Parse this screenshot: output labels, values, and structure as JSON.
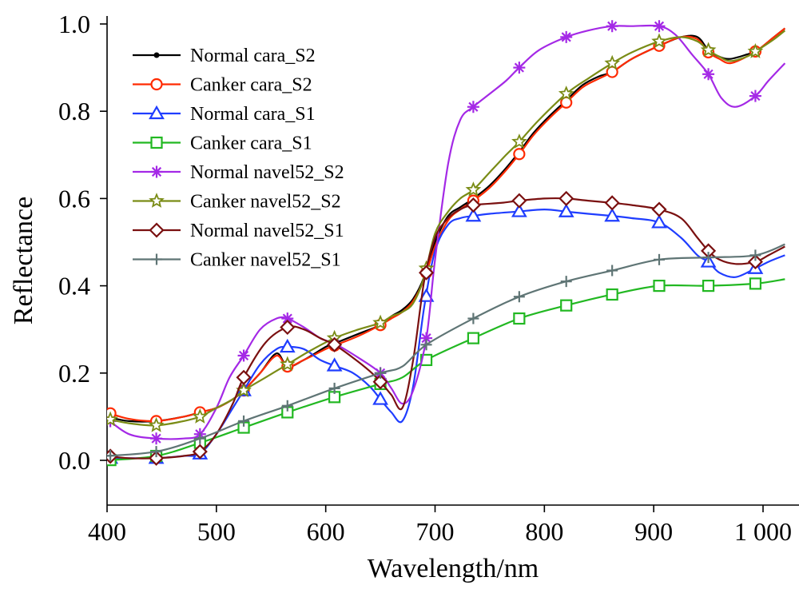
{
  "chart_data": {
    "type": "line",
    "xlabel": "Wavelength/nm",
    "ylabel": "Reflectance",
    "xlim": [
      400,
      1020
    ],
    "ylim": [
      -0.1,
      1.0
    ],
    "x_ticks": [
      400,
      500,
      600,
      700,
      800,
      900,
      1000
    ],
    "x_tick_labels": [
      "400",
      "500",
      "600",
      "700",
      "800",
      "900",
      "1 000"
    ],
    "y_ticks": [
      0.0,
      0.2,
      0.4,
      0.6,
      0.8,
      1.0
    ],
    "y_tick_labels": [
      "0.0",
      "0.2",
      "0.4",
      "0.6",
      "0.8",
      "1.0"
    ],
    "grid": false,
    "legend_position": "top-left",
    "series": [
      {
        "name": "Normal cara_S2",
        "color": "#000000",
        "marker": "dot",
        "x": [
          400,
          420,
          445,
          470,
          485,
          500,
          515,
          525,
          540,
          555,
          565,
          580,
          600,
          610,
          630,
          650,
          660,
          670,
          680,
          690,
          700,
          712,
          723,
          735,
          750,
          765,
          778,
          790,
          805,
          820,
          835,
          850,
          862,
          880,
          905,
          925,
          940,
          950,
          960,
          970,
          985,
          995,
          1010,
          1020
        ],
        "y": [
          0.1,
          0.09,
          0.09,
          0.1,
          0.11,
          0.12,
          0.14,
          0.16,
          0.2,
          0.245,
          0.215,
          0.23,
          0.26,
          0.27,
          0.29,
          0.31,
          0.33,
          0.345,
          0.37,
          0.42,
          0.5,
          0.56,
          0.58,
          0.6,
          0.63,
          0.67,
          0.71,
          0.75,
          0.79,
          0.825,
          0.86,
          0.88,
          0.89,
          0.92,
          0.95,
          0.97,
          0.97,
          0.94,
          0.925,
          0.92,
          0.93,
          0.94,
          0.97,
          0.99
        ]
      },
      {
        "name": "Canker cara_S2",
        "color": "#ff2a00",
        "marker": "circle",
        "x": [
          400,
          420,
          445,
          470,
          485,
          500,
          515,
          525,
          540,
          555,
          565,
          580,
          600,
          610,
          630,
          650,
          660,
          670,
          680,
          690,
          700,
          712,
          723,
          735,
          750,
          765,
          778,
          790,
          805,
          820,
          835,
          850,
          862,
          880,
          905,
          925,
          940,
          950,
          960,
          970,
          985,
          995,
          1010,
          1020
        ],
        "y": [
          0.11,
          0.095,
          0.09,
          0.1,
          0.11,
          0.12,
          0.14,
          0.16,
          0.2,
          0.24,
          0.215,
          0.23,
          0.255,
          0.265,
          0.285,
          0.31,
          0.325,
          0.34,
          0.365,
          0.415,
          0.49,
          0.55,
          0.575,
          0.595,
          0.625,
          0.665,
          0.705,
          0.745,
          0.785,
          0.82,
          0.855,
          0.875,
          0.89,
          0.92,
          0.95,
          0.97,
          0.965,
          0.935,
          0.92,
          0.91,
          0.925,
          0.94,
          0.97,
          0.99
        ]
      },
      {
        "name": "Normal cara_S1",
        "color": "#1f3dff",
        "marker": "triangle",
        "x": [
          400,
          420,
          445,
          470,
          485,
          500,
          515,
          525,
          540,
          555,
          565,
          580,
          595,
          610,
          625,
          640,
          650,
          660,
          670,
          680,
          690,
          700,
          712,
          723,
          735,
          750,
          775,
          800,
          820,
          840,
          862,
          880,
          905,
          925,
          940,
          950,
          960,
          975,
          993,
          1005,
          1020
        ],
        "y": [
          0.005,
          0.005,
          0.005,
          0.01,
          0.015,
          0.06,
          0.12,
          0.16,
          0.22,
          0.255,
          0.26,
          0.255,
          0.23,
          0.215,
          0.2,
          0.17,
          0.14,
          0.11,
          0.09,
          0.17,
          0.35,
          0.48,
          0.54,
          0.555,
          0.56,
          0.565,
          0.57,
          0.575,
          0.57,
          0.565,
          0.56,
          0.555,
          0.545,
          0.51,
          0.47,
          0.455,
          0.43,
          0.42,
          0.44,
          0.455,
          0.47
        ]
      },
      {
        "name": "Canker cara_S1",
        "color": "#22b822",
        "marker": "square",
        "x": [
          400,
          445,
          485,
          525,
          565,
          608,
          650,
          670,
          692,
          735,
          777,
          820,
          862,
          905,
          950,
          993,
          1020
        ],
        "y": [
          0.0,
          0.01,
          0.04,
          0.075,
          0.11,
          0.145,
          0.175,
          0.19,
          0.23,
          0.28,
          0.325,
          0.355,
          0.38,
          0.4,
          0.4,
          0.405,
          0.415
        ]
      },
      {
        "name": "Normal navel52_S2",
        "color": "#a429e6",
        "marker": "asterisk",
        "x": [
          400,
          420,
          445,
          470,
          485,
          500,
          512,
          525,
          540,
          555,
          565,
          580,
          595,
          610,
          630,
          650,
          660,
          670,
          680,
          692,
          700,
          712,
          723,
          735,
          750,
          765,
          777,
          795,
          820,
          840,
          862,
          880,
          905,
          920,
          935,
          950,
          962,
          975,
          993,
          1005,
          1020
        ],
        "y": [
          0.095,
          0.06,
          0.05,
          0.05,
          0.06,
          0.12,
          0.19,
          0.24,
          0.3,
          0.325,
          0.325,
          0.305,
          0.28,
          0.265,
          0.235,
          0.2,
          0.165,
          0.13,
          0.16,
          0.28,
          0.46,
          0.68,
          0.78,
          0.81,
          0.84,
          0.87,
          0.9,
          0.94,
          0.97,
          0.985,
          0.995,
          0.995,
          0.995,
          0.975,
          0.93,
          0.885,
          0.83,
          0.81,
          0.835,
          0.87,
          0.91
        ]
      },
      {
        "name": "Canker navel52_S2",
        "color": "#7a8c16",
        "marker": "star",
        "x": [
          400,
          420,
          445,
          470,
          485,
          500,
          515,
          525,
          545,
          565,
          585,
          608,
          630,
          650,
          660,
          670,
          680,
          690,
          700,
          712,
          723,
          735,
          750,
          765,
          777,
          795,
          820,
          840,
          862,
          880,
          905,
          925,
          940,
          950,
          960,
          970,
          985,
          995,
          1010,
          1020
        ],
        "y": [
          0.095,
          0.085,
          0.08,
          0.09,
          0.1,
          0.12,
          0.14,
          0.16,
          0.19,
          0.22,
          0.25,
          0.28,
          0.3,
          0.315,
          0.33,
          0.34,
          0.36,
          0.42,
          0.52,
          0.57,
          0.6,
          0.62,
          0.66,
          0.7,
          0.73,
          0.78,
          0.84,
          0.875,
          0.91,
          0.935,
          0.96,
          0.97,
          0.96,
          0.94,
          0.925,
          0.915,
          0.925,
          0.94,
          0.965,
          0.985
        ]
      },
      {
        "name": "Normal navel52_S1",
        "color": "#7a1010",
        "marker": "diamond",
        "x": [
          400,
          420,
          445,
          470,
          485,
          500,
          515,
          525,
          545,
          565,
          580,
          595,
          608,
          625,
          640,
          650,
          660,
          670,
          680,
          690,
          700,
          712,
          723,
          735,
          760,
          777,
          800,
          820,
          840,
          862,
          880,
          905,
          925,
          940,
          950,
          960,
          975,
          993,
          1005,
          1020
        ],
        "y": [
          0.01,
          0.005,
          0.005,
          0.01,
          0.02,
          0.06,
          0.13,
          0.19,
          0.27,
          0.305,
          0.3,
          0.28,
          0.265,
          0.235,
          0.205,
          0.18,
          0.15,
          0.12,
          0.23,
          0.41,
          0.51,
          0.555,
          0.575,
          0.585,
          0.59,
          0.595,
          0.6,
          0.6,
          0.595,
          0.59,
          0.585,
          0.575,
          0.555,
          0.51,
          0.48,
          0.46,
          0.45,
          0.455,
          0.47,
          0.49
        ]
      },
      {
        "name": "Canker navel52_S1",
        "color": "#5f7575",
        "marker": "plus",
        "x": [
          400,
          445,
          485,
          525,
          565,
          608,
          650,
          670,
          692,
          735,
          777,
          820,
          862,
          905,
          950,
          993,
          1020
        ],
        "y": [
          0.01,
          0.02,
          0.05,
          0.09,
          0.125,
          0.165,
          0.2,
          0.215,
          0.265,
          0.325,
          0.375,
          0.41,
          0.435,
          0.46,
          0.465,
          0.47,
          0.495
        ]
      }
    ],
    "marker_x": [
      403,
      445,
      485,
      525,
      565,
      608,
      650,
      692,
      735,
      777,
      820,
      862,
      905,
      950,
      993
    ]
  }
}
